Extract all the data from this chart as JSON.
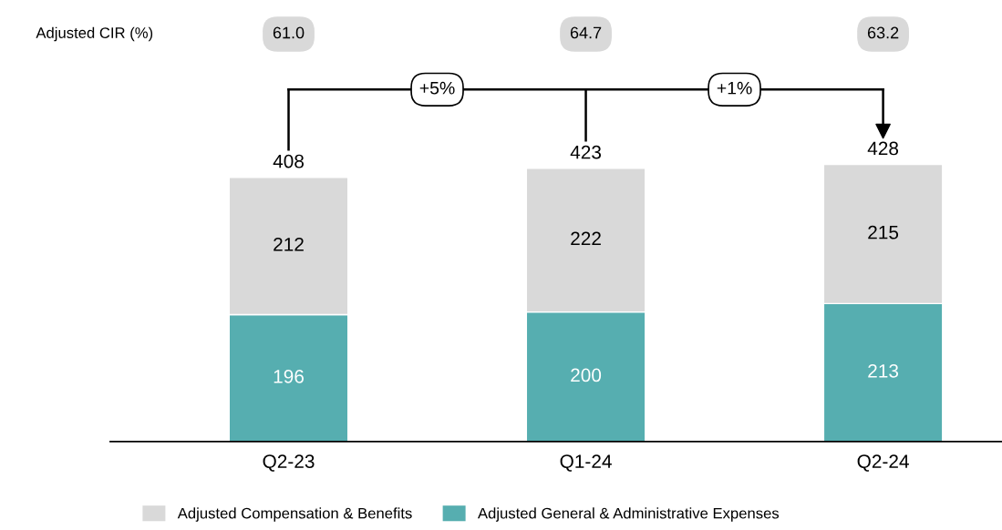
{
  "chart_data": {
    "type": "bar",
    "stacked": true,
    "categories": [
      "Q2-23",
      "Q1-24",
      "Q2-24"
    ],
    "series": [
      {
        "name": "Adjusted General & Administrative Expenses",
        "color": "#56aeb0",
        "values": [
          196,
          200,
          213
        ]
      },
      {
        "name": "Adjusted Compensation & Benefits",
        "color": "#d9d9d9",
        "values": [
          212,
          222,
          215
        ]
      }
    ],
    "data_labels": true,
    "totals": [
      "408",
      "423",
      "428"
    ],
    "annotations": [
      "Adjusted CIR (%)",
      "61.0",
      "64.7",
      "63.2",
      "+5%",
      "+1%"
    ],
    "tick_labels": "x",
    "legend": "bottom",
    "grid": false
  }
}
